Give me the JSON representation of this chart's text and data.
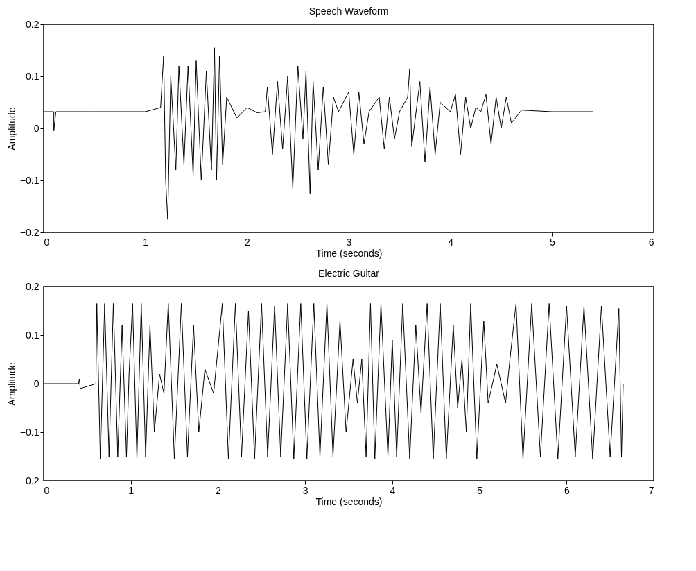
{
  "chart_data": [
    {
      "type": "line",
      "title": "Speech Waveform",
      "xlabel": "Time (seconds)",
      "ylabel": "Amplitude",
      "xlim": [
        0,
        6
      ],
      "xticks": [
        0,
        1,
        2,
        3,
        4,
        5,
        6
      ],
      "ylim": [
        -0.2,
        0.2
      ],
      "yticks": [
        -0.2,
        -0.1,
        0,
        0.1,
        0.2
      ],
      "grid": false,
      "series": [
        {
          "color": "#000000",
          "x": [
            0,
            0.1,
            0.1,
            0.12,
            0.5,
            1.0,
            1.15,
            1.18,
            1.2,
            1.22,
            1.25,
            1.3,
            1.33,
            1.38,
            1.42,
            1.47,
            1.5,
            1.55,
            1.6,
            1.65,
            1.68,
            1.7,
            1.73,
            1.76,
            1.8,
            1.9,
            2.0,
            2.1,
            2.18,
            2.2,
            2.25,
            2.3,
            2.35,
            2.4,
            2.45,
            2.5,
            2.55,
            2.58,
            2.62,
            2.65,
            2.7,
            2.75,
            2.8,
            2.85,
            2.9,
            3.0,
            3.05,
            3.1,
            3.15,
            3.2,
            3.3,
            3.35,
            3.4,
            3.45,
            3.5,
            3.58,
            3.6,
            3.62,
            3.7,
            3.75,
            3.8,
            3.85,
            3.9,
            4.0,
            4.05,
            4.1,
            4.15,
            4.2,
            4.25,
            4.3,
            4.35,
            4.4,
            4.45,
            4.5,
            4.55,
            4.6,
            4.7,
            5.0,
            5.4
          ],
          "values": [
            0.032,
            0.032,
            -0.005,
            0.032,
            0.032,
            0.032,
            0.04,
            0.14,
            -0.1,
            -0.175,
            0.1,
            -0.08,
            0.12,
            -0.07,
            0.12,
            -0.09,
            0.13,
            -0.1,
            0.11,
            -0.08,
            0.155,
            -0.1,
            0.14,
            -0.07,
            0.06,
            0.02,
            0.04,
            0.03,
            0.032,
            0.08,
            -0.05,
            0.09,
            -0.04,
            0.1,
            -0.115,
            0.12,
            -0.02,
            0.11,
            -0.125,
            0.09,
            -0.08,
            0.08,
            -0.07,
            0.06,
            0.032,
            0.07,
            -0.05,
            0.07,
            -0.03,
            0.032,
            0.06,
            -0.04,
            0.06,
            -0.02,
            0.032,
            0.06,
            0.115,
            -0.035,
            0.09,
            -0.065,
            0.08,
            -0.05,
            0.05,
            0.032,
            0.065,
            -0.05,
            0.06,
            0.0,
            0.04,
            0.032,
            0.065,
            -0.03,
            0.06,
            0.0,
            0.06,
            0.01,
            0.035,
            0.032,
            0.032
          ]
        }
      ]
    },
    {
      "type": "line",
      "title": "Electric Guitar",
      "xlabel": "Time (seconds)",
      "ylabel": "Amplitude",
      "xlim": [
        0,
        7
      ],
      "xticks": [
        0,
        1,
        2,
        3,
        4,
        5,
        6,
        7
      ],
      "ylim": [
        -0.2,
        0.2
      ],
      "yticks": [
        -0.2,
        -0.1,
        0,
        0.1,
        0.2
      ],
      "grid": false,
      "series": [
        {
          "color": "#000000",
          "x": [
            0,
            0.4,
            0.41,
            0.42,
            0.6,
            0.61,
            0.65,
            0.7,
            0.75,
            0.8,
            0.85,
            0.9,
            0.95,
            0.98,
            1.02,
            1.07,
            1.12,
            1.17,
            1.22,
            1.27,
            1.33,
            1.38,
            1.43,
            1.5,
            1.58,
            1.65,
            1.72,
            1.78,
            1.85,
            1.95,
            2.05,
            2.12,
            2.2,
            2.27,
            2.35,
            2.42,
            2.5,
            2.57,
            2.65,
            2.72,
            2.8,
            2.87,
            2.95,
            3.02,
            3.1,
            3.17,
            3.25,
            3.32,
            3.4,
            3.47,
            3.55,
            3.6,
            3.65,
            3.7,
            3.75,
            3.8,
            3.87,
            3.95,
            4.0,
            4.05,
            4.12,
            4.2,
            4.27,
            4.33,
            4.4,
            4.47,
            4.55,
            4.62,
            4.7,
            4.75,
            4.8,
            4.85,
            4.9,
            4.97,
            5.05,
            5.1,
            5.2,
            5.3,
            5.35,
            5.42,
            5.5,
            5.6,
            5.7,
            5.8,
            5.9,
            6.0,
            6.1,
            6.2,
            6.3,
            6.4,
            6.5,
            6.6,
            6.63,
            6.65
          ],
          "values": [
            0,
            0,
            0.01,
            -0.01,
            0,
            0.165,
            -0.155,
            0.165,
            -0.15,
            0.165,
            -0.15,
            0.12,
            -0.15,
            0.02,
            0.165,
            -0.155,
            0.165,
            -0.15,
            0.12,
            -0.1,
            0.02,
            -0.02,
            0.165,
            -0.155,
            0.165,
            -0.15,
            0.12,
            -0.1,
            0.03,
            -0.02,
            0.165,
            -0.155,
            0.165,
            -0.15,
            0.15,
            -0.155,
            0.165,
            -0.15,
            0.16,
            -0.15,
            0.165,
            -0.155,
            0.165,
            -0.155,
            0.165,
            -0.15,
            0.165,
            -0.15,
            0.13,
            -0.1,
            0.05,
            -0.04,
            0.05,
            -0.15,
            0.165,
            -0.155,
            0.165,
            -0.15,
            0.09,
            -0.15,
            0.165,
            -0.155,
            0.12,
            -0.06,
            0.165,
            -0.155,
            0.165,
            -0.155,
            0.12,
            -0.05,
            0.05,
            -0.1,
            0.165,
            -0.155,
            0.13,
            -0.04,
            0.04,
            -0.04,
            0.05,
            0.165,
            -0.155,
            0.165,
            -0.15,
            0.165,
            -0.155,
            0.16,
            -0.15,
            0.16,
            -0.155,
            0.16,
            -0.15,
            0.155,
            -0.15,
            0
          ]
        }
      ]
    }
  ]
}
